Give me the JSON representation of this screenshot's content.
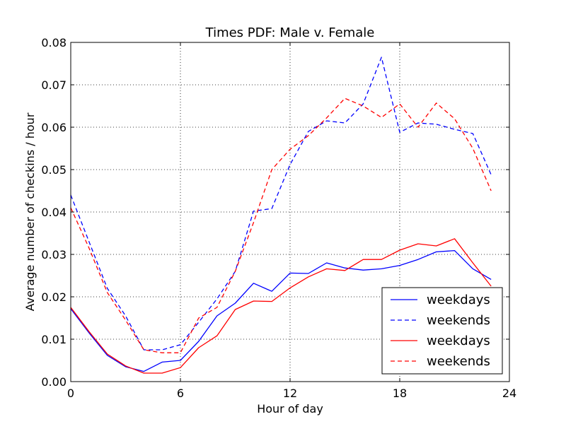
{
  "chart_data": {
    "type": "line",
    "title": "Times PDF: Male v. Female",
    "xlabel": "Hour of day",
    "ylabel": "Average number of checkins / hour",
    "xlim": [
      0,
      24
    ],
    "ylim": [
      0,
      0.08
    ],
    "xticks": [
      0,
      6,
      12,
      18,
      24
    ],
    "xtick_labels": [
      "0",
      "6",
      "12",
      "18",
      "24"
    ],
    "yticks": [
      0,
      0.01,
      0.02,
      0.03,
      0.04,
      0.05,
      0.06,
      0.07,
      0.08
    ],
    "ytick_labels": [
      "0.00",
      "0.01",
      "0.02",
      "0.03",
      "0.04",
      "0.05",
      "0.06",
      "0.07",
      "0.08"
    ],
    "grid": true,
    "grid_style": "dotted",
    "legend_position": "lower-right",
    "x": [
      0,
      1,
      2,
      3,
      4,
      5,
      6,
      7,
      8,
      9,
      10,
      11,
      12,
      13,
      14,
      15,
      16,
      17,
      18,
      19,
      20,
      21,
      22,
      23
    ],
    "series": [
      {
        "name": "weekdays",
        "color": "#0000ff",
        "dash": "solid",
        "values": [
          0.0172,
          0.0115,
          0.0062,
          0.0035,
          0.0024,
          0.0046,
          0.005,
          0.0095,
          0.0155,
          0.0185,
          0.0232,
          0.0213,
          0.0256,
          0.0255,
          0.028,
          0.0268,
          0.0263,
          0.0266,
          0.0274,
          0.0288,
          0.0306,
          0.0309,
          0.0266,
          0.0241
        ]
      },
      {
        "name": "weekends",
        "color": "#0000ff",
        "dash": "dashed",
        "values": [
          0.044,
          0.033,
          0.022,
          0.0155,
          0.0075,
          0.0075,
          0.0087,
          0.014,
          0.0195,
          0.026,
          0.0402,
          0.0408,
          0.0512,
          0.059,
          0.0615,
          0.061,
          0.0655,
          0.0765,
          0.0588,
          0.061,
          0.0607,
          0.0595,
          0.0585,
          0.0488
        ]
      },
      {
        "name": "weekdays",
        "color": "#ff0000",
        "dash": "solid",
        "values": [
          0.0175,
          0.0118,
          0.0065,
          0.0037,
          0.002,
          0.002,
          0.0033,
          0.008,
          0.0108,
          0.017,
          0.019,
          0.0189,
          0.0221,
          0.0247,
          0.0266,
          0.0262,
          0.0288,
          0.0288,
          0.031,
          0.0325,
          0.032,
          0.0337,
          0.028,
          0.0225
        ]
      },
      {
        "name": "weekends",
        "color": "#ff0000",
        "dash": "dashed",
        "values": [
          0.041,
          0.0315,
          0.021,
          0.0145,
          0.0075,
          0.0068,
          0.0068,
          0.015,
          0.0175,
          0.026,
          0.0375,
          0.05,
          0.0548,
          0.058,
          0.0622,
          0.0668,
          0.065,
          0.0623,
          0.0655,
          0.06,
          0.0657,
          0.062,
          0.055,
          0.045
        ]
      }
    ]
  }
}
